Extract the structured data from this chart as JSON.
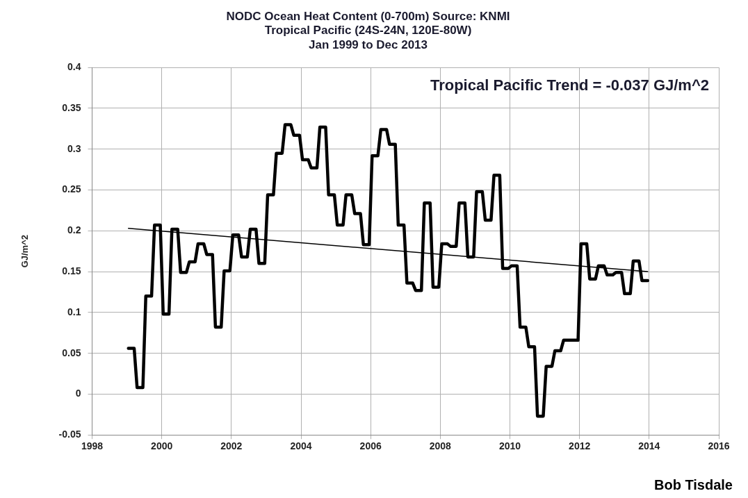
{
  "chart_data": {
    "type": "line",
    "title": "NODC Ocean Heat Content (0-700m) Source: KNMI",
    "subtitle": "Tropical Pacific (24S-24N, 120E-80W)\nJan 1999 to Dec 2013",
    "ylabel": "GJ/m^2",
    "annotations": [
      "Tropical Pacific Trend = -0.037 GJ/m^2",
      "Bob Tisdale"
    ],
    "xlim": [
      1998,
      2016
    ],
    "xticks": [
      1998,
      2000,
      2002,
      2004,
      2006,
      2008,
      2010,
      2012,
      2014,
      2016
    ],
    "ylim": [
      -0.05,
      0.4
    ],
    "yticks": [
      -0.05,
      0,
      0.05,
      0.1,
      0.15,
      0.2,
      0.25,
      0.3,
      0.35,
      0.4
    ],
    "grid": true,
    "legend": false,
    "marker": "none",
    "line_style": "solid",
    "series": [
      {
        "color": "#000000",
        "x": [
          1999.042,
          1999.208,
          1999.292,
          1999.458,
          1999.542,
          1999.708,
          1999.792,
          1999.958,
          2000.042,
          2000.208,
          2000.292,
          2000.458,
          2000.542,
          2000.708,
          2000.792,
          2000.958,
          2001.042,
          2001.208,
          2001.292,
          2001.458,
          2001.542,
          2001.708,
          2001.792,
          2001.958,
          2002.042,
          2002.208,
          2002.292,
          2002.458,
          2002.542,
          2002.708,
          2002.792,
          2002.958,
          2003.042,
          2003.208,
          2003.292,
          2003.458,
          2003.542,
          2003.708,
          2003.792,
          2003.958,
          2004.042,
          2004.208,
          2004.292,
          2004.458,
          2004.542,
          2004.708,
          2004.792,
          2004.958,
          2005.042,
          2005.208,
          2005.292,
          2005.458,
          2005.542,
          2005.708,
          2005.792,
          2005.958,
          2006.042,
          2006.208,
          2006.292,
          2006.458,
          2006.542,
          2006.708,
          2006.792,
          2006.958,
          2007.042,
          2007.208,
          2007.292,
          2007.458,
          2007.542,
          2007.708,
          2007.792,
          2007.958,
          2008.042,
          2008.208,
          2008.292,
          2008.458,
          2008.542,
          2008.708,
          2008.792,
          2008.958,
          2009.042,
          2009.208,
          2009.292,
          2009.458,
          2009.542,
          2009.708,
          2009.792,
          2009.958,
          2010.042,
          2010.208,
          2010.292,
          2010.458,
          2010.542,
          2010.708,
          2010.792,
          2010.958,
          2011.042,
          2011.208,
          2011.292,
          2011.458,
          2011.542,
          2011.708,
          2011.792,
          2011.958,
          2012.042,
          2012.208,
          2012.292,
          2012.458,
          2012.542,
          2012.708,
          2012.792,
          2012.958,
          2013.042,
          2013.208,
          2013.292,
          2013.458,
          2013.542,
          2013.708,
          2013.792,
          2013.958
        ],
        "values": [
          0.056,
          0.056,
          0.008,
          0.008,
          0.12,
          0.12,
          0.207,
          0.207,
          0.098,
          0.098,
          0.202,
          0.202,
          0.149,
          0.149,
          0.162,
          0.162,
          0.184,
          0.184,
          0.171,
          0.171,
          0.082,
          0.082,
          0.151,
          0.151,
          0.195,
          0.195,
          0.168,
          0.168,
          0.202,
          0.202,
          0.16,
          0.16,
          0.244,
          0.244,
          0.295,
          0.295,
          0.33,
          0.33,
          0.317,
          0.317,
          0.287,
          0.287,
          0.277,
          0.277,
          0.327,
          0.327,
          0.244,
          0.244,
          0.207,
          0.207,
          0.244,
          0.244,
          0.221,
          0.221,
          0.183,
          0.183,
          0.292,
          0.292,
          0.324,
          0.324,
          0.306,
          0.306,
          0.207,
          0.207,
          0.136,
          0.136,
          0.127,
          0.127,
          0.234,
          0.234,
          0.131,
          0.131,
          0.184,
          0.184,
          0.181,
          0.181,
          0.234,
          0.234,
          0.168,
          0.168,
          0.248,
          0.248,
          0.213,
          0.213,
          0.268,
          0.268,
          0.154,
          0.154,
          0.157,
          0.157,
          0.082,
          0.082,
          0.058,
          0.058,
          -0.027,
          -0.027,
          0.034,
          0.034,
          0.053,
          0.053,
          0.066,
          0.066,
          0.066,
          0.066,
          0.184,
          0.184,
          0.141,
          0.141,
          0.157,
          0.157,
          0.146,
          0.146,
          0.149,
          0.149,
          0.123,
          0.123,
          0.163,
          0.163,
          0.139,
          0.139
        ]
      },
      {
        "type": "line",
        "color": "#000000",
        "x": [
          1999.042,
          2013.958
        ],
        "values": [
          0.203,
          0.15
        ]
      }
    ]
  }
}
